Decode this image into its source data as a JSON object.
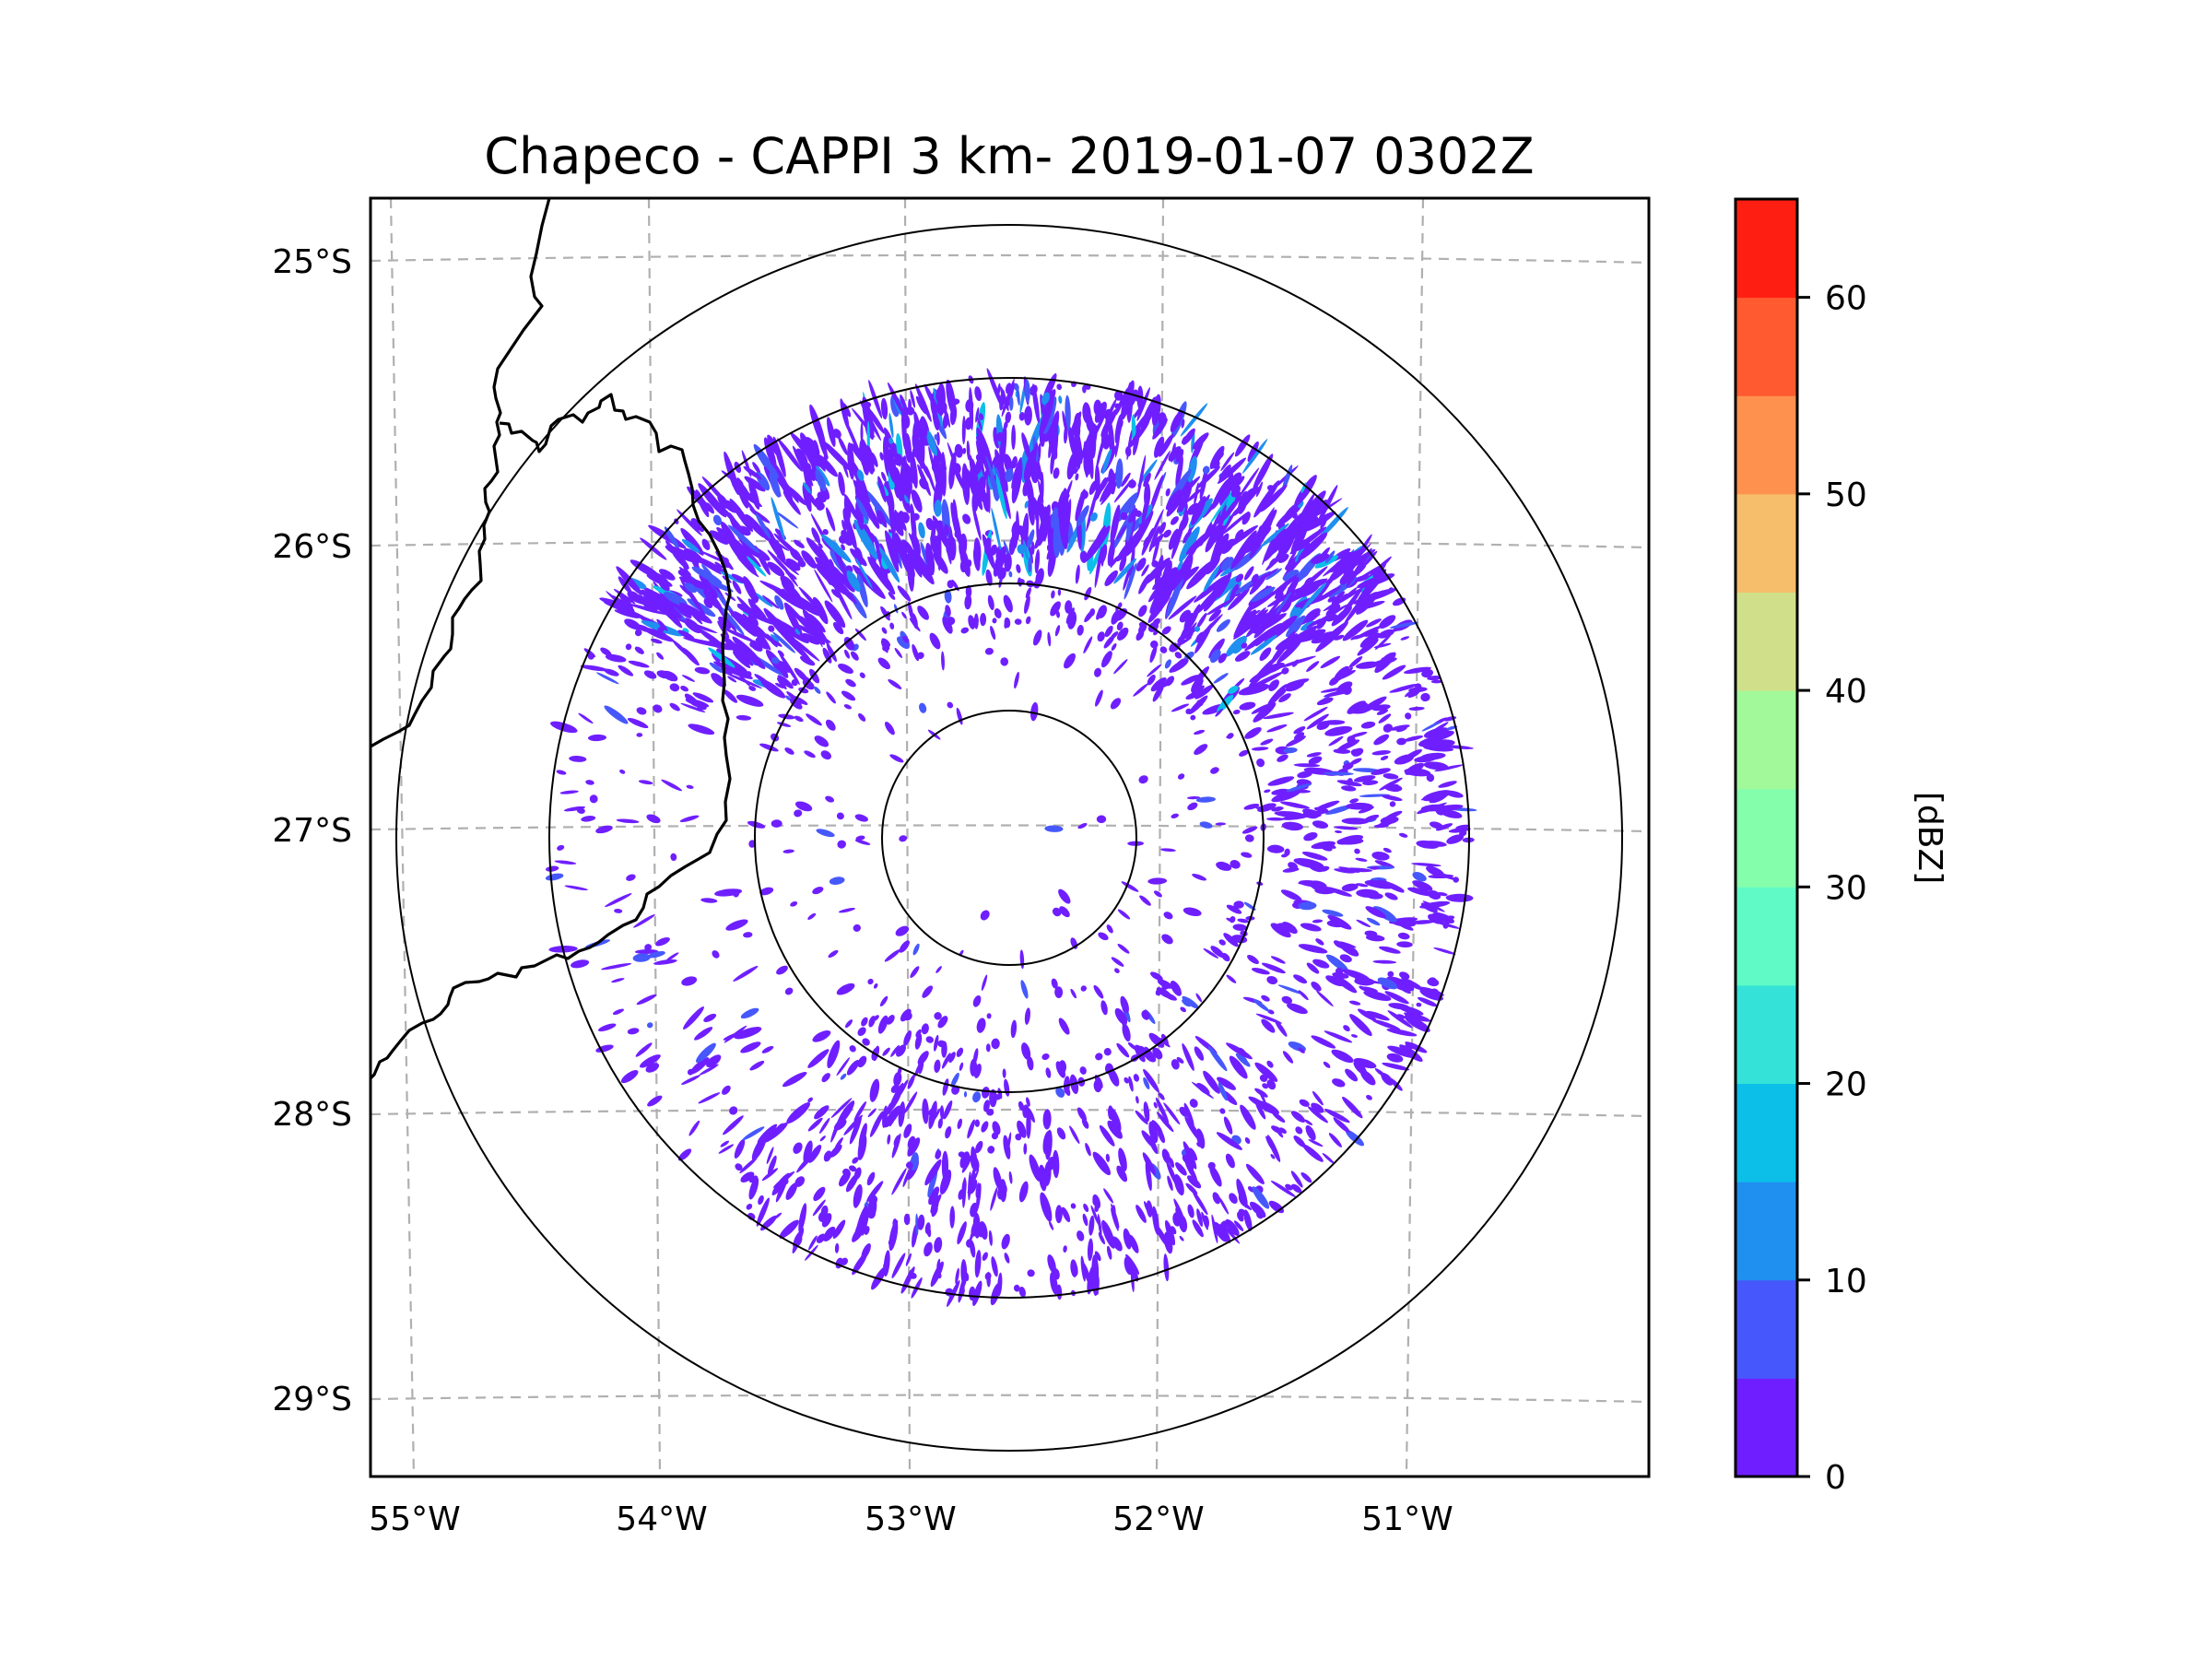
{
  "chart_data": {
    "type": "heatmap",
    "subtype": "radar-ppi-map",
    "title": "Chapeco - CAPPI 3 km- 2019-01-07 0302Z",
    "radar_site": "Chapeco",
    "product": "CAPPI 3 km",
    "datetime": "2019-01-07 0302Z",
    "map_extent": {
      "lon_min": -55.1,
      "lon_max": -50.1,
      "lat_min": -29.25,
      "lat_max": -24.75
    },
    "radar_center": {
      "lon": -52.6,
      "lat": -27.0
    },
    "range_rings": 4,
    "x_ticks": [
      {
        "label": "55°W",
        "value": -55
      },
      {
        "label": "54°W",
        "value": -54
      },
      {
        "label": "53°W",
        "value": -53
      },
      {
        "label": "52°W",
        "value": -52
      },
      {
        "label": "51°W",
        "value": -51
      }
    ],
    "y_ticks": [
      {
        "label": "25°S",
        "value": -25
      },
      {
        "label": "26°S",
        "value": -26
      },
      {
        "label": "27°S",
        "value": -27
      },
      {
        "label": "28°S",
        "value": -28
      },
      {
        "label": "29°S",
        "value": -29
      }
    ],
    "gridlines": "dashed gray",
    "colorbar": {
      "label": "[dBZ]",
      "range": [
        0,
        65
      ],
      "placement": "right",
      "ticks": [
        {
          "label": "0",
          "value": 0
        },
        {
          "label": "10",
          "value": 10
        },
        {
          "label": "20",
          "value": 20
        },
        {
          "label": "30",
          "value": 30
        },
        {
          "label": "40",
          "value": 40
        },
        {
          "label": "50",
          "value": 50
        },
        {
          "label": "60",
          "value": 60
        }
      ],
      "bands": [
        {
          "from": 0,
          "to": 5,
          "color": "#6f1fff"
        },
        {
          "from": 5,
          "to": 10,
          "color": "#4658fc"
        },
        {
          "from": 10,
          "to": 15,
          "color": "#1f8ff0"
        },
        {
          "from": 15,
          "to": 20,
          "color": "#0bbfe9"
        },
        {
          "from": 20,
          "to": 25,
          "color": "#34e2d8"
        },
        {
          "from": 25,
          "to": 30,
          "color": "#5ffac6"
        },
        {
          "from": 30,
          "to": 35,
          "color": "#85feac"
        },
        {
          "from": 35,
          "to": 40,
          "color": "#a2f99a"
        },
        {
          "from": 40,
          "to": 45,
          "color": "#d0e08a"
        },
        {
          "from": 45,
          "to": 50,
          "color": "#f6bd6a"
        },
        {
          "from": 50,
          "to": 55,
          "color": "#ff914f"
        },
        {
          "from": 55,
          "to": 60,
          "color": "#ff5a30"
        },
        {
          "from": 60,
          "to": 65,
          "color": "#ff1f12"
        }
      ]
    },
    "echo_summary": {
      "dominant_range_dbz": [
        0,
        5
      ],
      "max_observed_dbz_approx": 20,
      "regions": [
        {
          "name": "north-northwest band",
          "intensity": "dense, 0-15 dBZ"
        },
        {
          "name": "east / northeast",
          "intensity": "scattered-moderate, 0-10 dBZ"
        },
        {
          "name": "south-southeast",
          "intensity": "scattered, 0-15 dBZ"
        },
        {
          "name": "center",
          "intensity": "sparse, 0-5 dBZ"
        }
      ]
    }
  }
}
